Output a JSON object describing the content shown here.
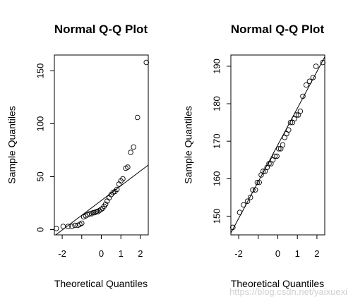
{
  "watermark": "https://blog.csdn.net/yaixuexi",
  "chart_data": [
    {
      "type": "scatter",
      "title": "Normal Q-Q Plot",
      "xlabel": "Theoretical Quantiles",
      "ylabel": "Sample Quantiles",
      "xlim": [
        -2.4,
        2.4
      ],
      "ylim": [
        -5,
        165
      ],
      "xticks": [
        -2,
        -1,
        0,
        1,
        2
      ],
      "xtick_labels": [
        "-2",
        "",
        "0",
        "1",
        "2"
      ],
      "yticks": [
        0,
        50,
        100,
        150
      ],
      "ytick_labels": [
        "0",
        "50",
        "100",
        "150"
      ],
      "reference_line": {
        "x": [
          -2.4,
          2.4
        ],
        "y": [
          -6,
          61
        ]
      },
      "points": [
        {
          "x": -2.3,
          "y": 1
        },
        {
          "x": -1.95,
          "y": 3
        },
        {
          "x": -1.7,
          "y": 3
        },
        {
          "x": -1.5,
          "y": 3
        },
        {
          "x": -1.35,
          "y": 4
        },
        {
          "x": -1.2,
          "y": 4
        },
        {
          "x": -1.1,
          "y": 5
        },
        {
          "x": -1.0,
          "y": 6
        },
        {
          "x": -0.9,
          "y": 12
        },
        {
          "x": -0.8,
          "y": 13
        },
        {
          "x": -0.7,
          "y": 14
        },
        {
          "x": -0.6,
          "y": 15
        },
        {
          "x": -0.5,
          "y": 15
        },
        {
          "x": -0.42,
          "y": 16
        },
        {
          "x": -0.34,
          "y": 16
        },
        {
          "x": -0.26,
          "y": 17
        },
        {
          "x": -0.18,
          "y": 17
        },
        {
          "x": -0.1,
          "y": 18
        },
        {
          "x": -0.02,
          "y": 19
        },
        {
          "x": 0.06,
          "y": 20
        },
        {
          "x": 0.14,
          "y": 22
        },
        {
          "x": 0.22,
          "y": 24
        },
        {
          "x": 0.3,
          "y": 27
        },
        {
          "x": 0.4,
          "y": 30
        },
        {
          "x": 0.5,
          "y": 33
        },
        {
          "x": 0.6,
          "y": 35
        },
        {
          "x": 0.7,
          "y": 36
        },
        {
          "x": 0.8,
          "y": 38
        },
        {
          "x": 0.9,
          "y": 43
        },
        {
          "x": 1.0,
          "y": 46
        },
        {
          "x": 1.1,
          "y": 48
        },
        {
          "x": 1.25,
          "y": 58
        },
        {
          "x": 1.35,
          "y": 59
        },
        {
          "x": 1.5,
          "y": 73
        },
        {
          "x": 1.65,
          "y": 78
        },
        {
          "x": 1.85,
          "y": 106
        },
        {
          "x": 2.3,
          "y": 158
        }
      ]
    },
    {
      "type": "scatter",
      "title": "Normal Q-Q Plot",
      "xlabel": "Theoretical Quantiles",
      "ylabel": "Sample Quantiles",
      "xlim": [
        -2.4,
        2.4
      ],
      "ylim": [
        145,
        193
      ],
      "xticks": [
        -2,
        -1,
        0,
        1,
        2
      ],
      "xtick_labels": [
        "-2",
        "",
        "0",
        "1",
        "2"
      ],
      "yticks": [
        150,
        160,
        170,
        180,
        190
      ],
      "ytick_labels": [
        "150",
        "160",
        "170",
        "180",
        "190"
      ],
      "reference_line": {
        "x": [
          -2.4,
          2.4
        ],
        "y": [
          145.5,
          192.5
        ]
      },
      "points": [
        {
          "x": -2.3,
          "y": 147
        },
        {
          "x": -1.95,
          "y": 151
        },
        {
          "x": -1.75,
          "y": 153
        },
        {
          "x": -1.55,
          "y": 154
        },
        {
          "x": -1.4,
          "y": 155
        },
        {
          "x": -1.28,
          "y": 157
        },
        {
          "x": -1.15,
          "y": 157
        },
        {
          "x": -1.05,
          "y": 159
        },
        {
          "x": -0.95,
          "y": 159
        },
        {
          "x": -0.85,
          "y": 161
        },
        {
          "x": -0.75,
          "y": 162
        },
        {
          "x": -0.65,
          "y": 162
        },
        {
          "x": -0.55,
          "y": 163
        },
        {
          "x": -0.45,
          "y": 164
        },
        {
          "x": -0.35,
          "y": 164
        },
        {
          "x": -0.25,
          "y": 165
        },
        {
          "x": -0.15,
          "y": 166
        },
        {
          "x": -0.05,
          "y": 166
        },
        {
          "x": 0.05,
          "y": 168
        },
        {
          "x": 0.15,
          "y": 168
        },
        {
          "x": 0.25,
          "y": 169
        },
        {
          "x": 0.35,
          "y": 171
        },
        {
          "x": 0.45,
          "y": 172
        },
        {
          "x": 0.55,
          "y": 173
        },
        {
          "x": 0.65,
          "y": 175
        },
        {
          "x": 0.75,
          "y": 175
        },
        {
          "x": 0.85,
          "y": 176
        },
        {
          "x": 0.95,
          "y": 177
        },
        {
          "x": 1.05,
          "y": 177
        },
        {
          "x": 1.15,
          "y": 178
        },
        {
          "x": 1.28,
          "y": 182
        },
        {
          "x": 1.45,
          "y": 185
        },
        {
          "x": 1.62,
          "y": 186
        },
        {
          "x": 1.8,
          "y": 187
        },
        {
          "x": 1.95,
          "y": 190
        },
        {
          "x": 2.3,
          "y": 191
        }
      ]
    }
  ]
}
